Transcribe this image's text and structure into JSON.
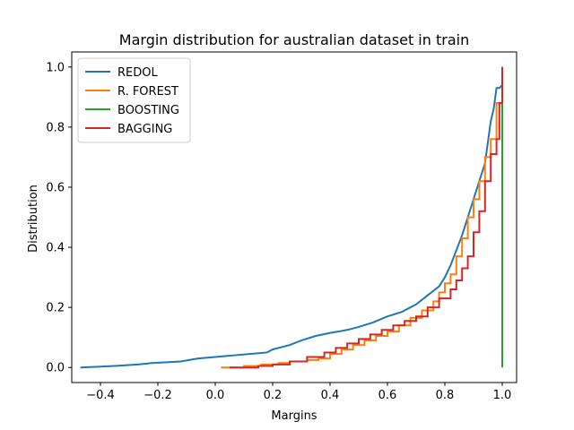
{
  "chart_data": {
    "type": "line",
    "title": "Margin distribution for australian dataset in train",
    "xlabel": "Margins",
    "ylabel": "Distribution",
    "xlim": [
      -0.5,
      1.05
    ],
    "ylim": [
      -0.05,
      1.05
    ],
    "xticks": [
      -0.4,
      -0.2,
      0.0,
      0.2,
      0.4,
      0.6,
      0.8,
      1.0
    ],
    "yticks": [
      0.0,
      0.2,
      0.4,
      0.6,
      0.8,
      1.0
    ],
    "grid": false,
    "legend_position": "upper-left",
    "series": [
      {
        "name": "REDOL",
        "color": "#1f77b4",
        "step": false,
        "x": [
          -0.47,
          -0.35,
          -0.27,
          -0.22,
          -0.12,
          -0.06,
          0.0,
          0.06,
          0.12,
          0.18,
          0.2,
          0.26,
          0.3,
          0.35,
          0.4,
          0.46,
          0.5,
          0.55,
          0.6,
          0.65,
          0.7,
          0.74,
          0.78,
          0.8,
          0.82,
          0.84,
          0.86,
          0.88,
          0.9,
          0.92,
          0.94,
          0.95,
          0.96,
          0.97,
          0.98,
          0.99,
          1.0
        ],
        "y": [
          0.0,
          0.005,
          0.01,
          0.015,
          0.02,
          0.03,
          0.035,
          0.04,
          0.045,
          0.05,
          0.06,
          0.075,
          0.09,
          0.105,
          0.115,
          0.125,
          0.135,
          0.15,
          0.17,
          0.185,
          0.21,
          0.24,
          0.27,
          0.3,
          0.34,
          0.39,
          0.44,
          0.5,
          0.56,
          0.62,
          0.68,
          0.75,
          0.82,
          0.86,
          0.93,
          0.93,
          0.94
        ]
      },
      {
        "name": "R. FOREST",
        "color": "#ff7f0e",
        "step": true,
        "x": [
          0.02,
          0.1,
          0.16,
          0.22,
          0.26,
          0.32,
          0.36,
          0.4,
          0.44,
          0.48,
          0.52,
          0.56,
          0.6,
          0.64,
          0.68,
          0.72,
          0.76,
          0.78,
          0.8,
          0.82,
          0.84,
          0.86,
          0.88,
          0.9,
          0.92,
          0.94,
          0.96,
          0.98,
          1.0
        ],
        "y": [
          0.0,
          0.005,
          0.01,
          0.015,
          0.02,
          0.025,
          0.03,
          0.045,
          0.06,
          0.075,
          0.09,
          0.105,
          0.12,
          0.14,
          0.165,
          0.19,
          0.22,
          0.25,
          0.28,
          0.31,
          0.37,
          0.43,
          0.5,
          0.56,
          0.62,
          0.7,
          0.76,
          0.88,
          1.0
        ]
      },
      {
        "name": "BOOSTING",
        "color": "#2ca02c",
        "step": false,
        "x": [
          1.0,
          1.0,
          1.0
        ],
        "y": [
          0.0,
          0.71,
          1.0
        ]
      },
      {
        "name": "BAGGING",
        "color": "#d62728",
        "step": true,
        "x": [
          0.05,
          0.15,
          0.2,
          0.26,
          0.32,
          0.38,
          0.42,
          0.46,
          0.5,
          0.54,
          0.58,
          0.62,
          0.66,
          0.7,
          0.74,
          0.78,
          0.82,
          0.84,
          0.86,
          0.88,
          0.9,
          0.92,
          0.94,
          0.96,
          0.98,
          0.99,
          1.0
        ],
        "y": [
          0.0,
          0.005,
          0.01,
          0.02,
          0.035,
          0.05,
          0.065,
          0.08,
          0.095,
          0.11,
          0.125,
          0.14,
          0.155,
          0.17,
          0.2,
          0.23,
          0.26,
          0.29,
          0.33,
          0.37,
          0.45,
          0.52,
          0.62,
          0.71,
          0.76,
          0.88,
          1.0
        ]
      }
    ]
  }
}
